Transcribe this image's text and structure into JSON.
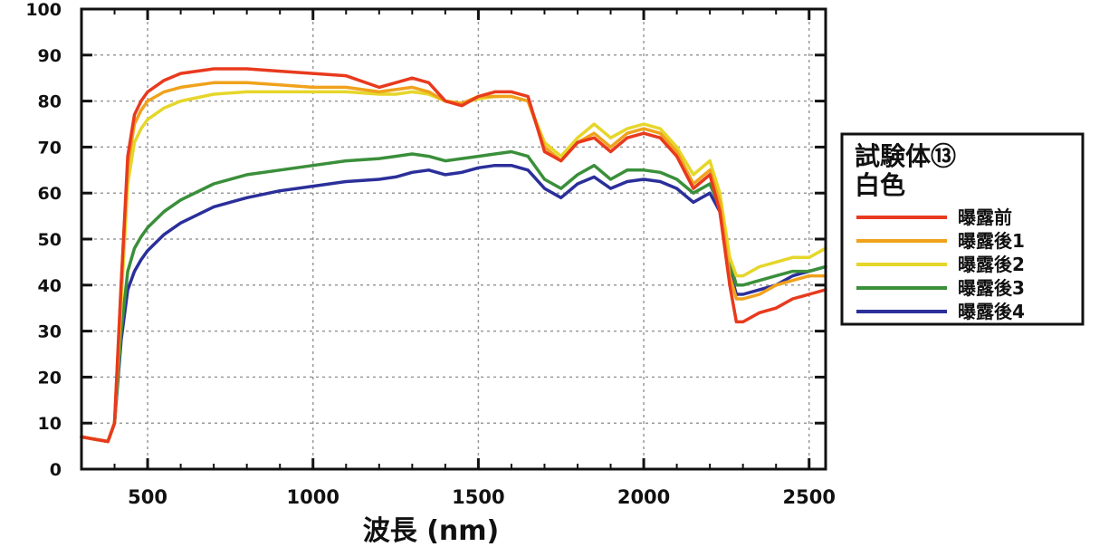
{
  "chart_data": {
    "type": "line",
    "xlabel": "波長 (nm)",
    "ylabel": "",
    "xlim": [
      300,
      2550
    ],
    "ylim": [
      0,
      100
    ],
    "xticks": [
      500,
      1000,
      1500,
      2000,
      2500
    ],
    "yticks": [
      0,
      10,
      20,
      30,
      40,
      50,
      60,
      70,
      80,
      90,
      100
    ],
    "grid": true,
    "legend": {
      "position": "right",
      "title_lines": [
        "試験体⑬",
        "白色"
      ]
    },
    "series": [
      {
        "name": "曝露前",
        "color": "#e83a1e",
        "x": [
          300,
          340,
          380,
          400,
          420,
          440,
          460,
          480,
          500,
          550,
          600,
          700,
          800,
          900,
          1000,
          1100,
          1200,
          1250,
          1300,
          1350,
          1400,
          1450,
          1500,
          1550,
          1600,
          1650,
          1700,
          1750,
          1800,
          1850,
          1900,
          1950,
          2000,
          2050,
          2100,
          2150,
          2200,
          2230,
          2260,
          2280,
          2300,
          2350,
          2400,
          2450,
          2500,
          2550
        ],
        "y": [
          7,
          6.5,
          6,
          10,
          40,
          68,
          77,
          80,
          82,
          84.5,
          86,
          87,
          87,
          86.5,
          86,
          85.5,
          83,
          84,
          85,
          84,
          80,
          79,
          81,
          82,
          82,
          81,
          69,
          67,
          71,
          72,
          69,
          72,
          73,
          72,
          68,
          61,
          64,
          56,
          40,
          32,
          32,
          34,
          35,
          37,
          38,
          39
        ]
      },
      {
        "name": "曝露後1",
        "color": "#f0a21c",
        "x": [
          300,
          340,
          380,
          400,
          420,
          440,
          460,
          480,
          500,
          550,
          600,
          700,
          800,
          900,
          1000,
          1100,
          1200,
          1250,
          1300,
          1350,
          1400,
          1450,
          1500,
          1550,
          1600,
          1650,
          1700,
          1750,
          1800,
          1850,
          1900,
          1950,
          2000,
          2050,
          2100,
          2150,
          2200,
          2230,
          2260,
          2280,
          2300,
          2350,
          2400,
          2450,
          2500,
          2550
        ],
        "y": [
          7,
          6.5,
          6,
          10,
          40,
          66,
          75,
          78,
          80,
          82,
          83,
          84,
          84,
          83.5,
          83,
          83,
          82,
          82.5,
          83,
          82,
          80,
          79.5,
          81,
          81,
          81,
          80,
          70,
          67,
          71,
          73,
          70,
          73,
          74,
          73,
          69,
          62,
          65,
          58,
          42,
          37,
          37,
          38,
          40,
          41,
          42,
          42
        ]
      },
      {
        "name": "曝露後2",
        "color": "#e6d62a",
        "x": [
          300,
          340,
          380,
          400,
          420,
          440,
          460,
          480,
          500,
          550,
          600,
          700,
          800,
          900,
          1000,
          1100,
          1200,
          1250,
          1300,
          1350,
          1400,
          1450,
          1500,
          1550,
          1600,
          1650,
          1700,
          1750,
          1800,
          1850,
          1900,
          1950,
          2000,
          2050,
          2100,
          2150,
          2200,
          2230,
          2260,
          2280,
          2300,
          2350,
          2400,
          2450,
          2500,
          2550
        ],
        "y": [
          7,
          6.5,
          6,
          10,
          36,
          62,
          71,
          74,
          76,
          78.5,
          80,
          81.5,
          82,
          82,
          82,
          82,
          81.5,
          81.5,
          82,
          81.5,
          80,
          79.5,
          80.5,
          81,
          81,
          80,
          71,
          68,
          72,
          75,
          72,
          74,
          75,
          74,
          70,
          64,
          67,
          60,
          46,
          42,
          42,
          44,
          45,
          46,
          46,
          48
        ]
      },
      {
        "name": "曝露後3",
        "color": "#3a8f3a",
        "x": [
          300,
          340,
          380,
          400,
          420,
          440,
          460,
          480,
          500,
          550,
          600,
          700,
          800,
          900,
          1000,
          1100,
          1200,
          1250,
          1300,
          1350,
          1400,
          1450,
          1500,
          1550,
          1600,
          1650,
          1700,
          1750,
          1800,
          1850,
          1900,
          1950,
          2000,
          2050,
          2100,
          2150,
          2200,
          2230,
          2260,
          2280,
          2300,
          2350,
          2400,
          2450,
          2500,
          2550
        ],
        "y": [
          7,
          6.5,
          6,
          10,
          30,
          43,
          48,
          50.5,
          52.5,
          56,
          58.5,
          62,
          64,
          65,
          66,
          67,
          67.5,
          68,
          68.5,
          68,
          67,
          67.5,
          68,
          68.5,
          69,
          68,
          63,
          61,
          64,
          66,
          63,
          65,
          65,
          64.5,
          63,
          60,
          62,
          57,
          45,
          40,
          40,
          41,
          42,
          43,
          43,
          44
        ]
      },
      {
        "name": "曝露後4",
        "color": "#2b2f9a",
        "x": [
          300,
          340,
          380,
          400,
          420,
          440,
          460,
          480,
          500,
          550,
          600,
          700,
          800,
          900,
          1000,
          1100,
          1200,
          1250,
          1300,
          1350,
          1400,
          1450,
          1500,
          1550,
          1600,
          1650,
          1700,
          1750,
          1800,
          1850,
          1900,
          1950,
          2000,
          2050,
          2100,
          2150,
          2200,
          2230,
          2260,
          2280,
          2300,
          2350,
          2400,
          2450,
          2500,
          2550
        ],
        "y": [
          7,
          6.5,
          6,
          10,
          28,
          39,
          43,
          45.5,
          47.5,
          51,
          53.5,
          57,
          59,
          60.5,
          61.5,
          62.5,
          63,
          63.5,
          64.5,
          65,
          64,
          64.5,
          65.5,
          66,
          66,
          65,
          61,
          59,
          62,
          63.5,
          61,
          62.5,
          63,
          62.5,
          61,
          58,
          60,
          56,
          43,
          38,
          38,
          39,
          40,
          42,
          43,
          44
        ]
      }
    ]
  }
}
